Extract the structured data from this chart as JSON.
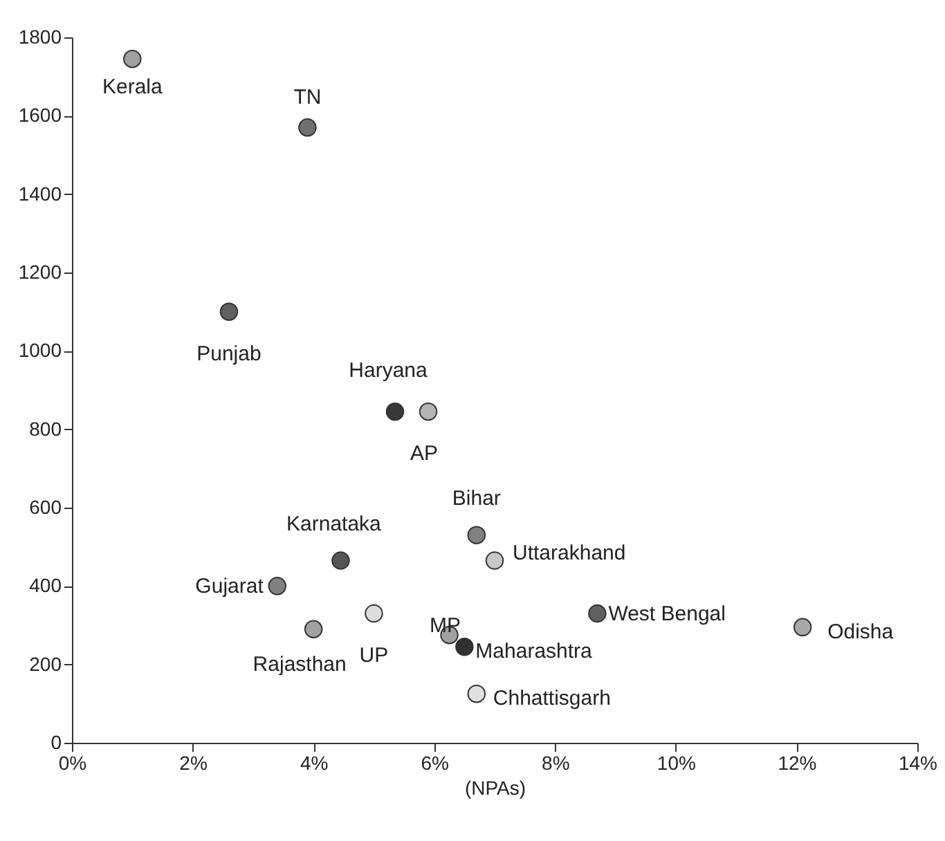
{
  "chart_data": {
    "type": "scatter",
    "xlabel": "(NPAs)",
    "x": [
      1.0,
      3.9,
      2.6,
      5.35,
      5.9,
      6.7,
      7.0,
      4.45,
      3.4,
      4.0,
      5.0,
      6.25,
      6.5,
      6.7,
      8.7,
      12.1
    ],
    "values": [
      1745,
      1570,
      1100,
      845,
      845,
      530,
      465,
      465,
      400,
      290,
      330,
      275,
      245,
      125,
      330,
      295
    ],
    "colors": [
      "#a0a0a0",
      "#707070",
      "#606060",
      "#383838",
      "#b4b4b4",
      "#808080",
      "#c8c8c8",
      "#555555",
      "#808080",
      "#a0a0a0",
      "#dcdcdc",
      "#a0a0a0",
      "#303030",
      "#e0e0e0",
      "#606060",
      "#a8a8a8"
    ],
    "annotations": [
      {
        "text": "Kerala",
        "x": 1.0,
        "y": 1745
      },
      {
        "text": "TN",
        "x": 3.9,
        "y": 1570
      },
      {
        "text": "Punjab",
        "x": 2.6,
        "y": 1100
      },
      {
        "text": "Haryana",
        "x": 5.35,
        "y": 845
      },
      {
        "text": "AP",
        "x": 5.9,
        "y": 845
      },
      {
        "text": "Bihar",
        "x": 6.7,
        "y": 530
      },
      {
        "text": "Uttarakhand",
        "x": 7.0,
        "y": 465
      },
      {
        "text": "Karnataka",
        "x": 4.45,
        "y": 465
      },
      {
        "text": "Gujarat",
        "x": 3.4,
        "y": 400
      },
      {
        "text": "Rajasthan",
        "x": 4.0,
        "y": 290
      },
      {
        "text": "UP",
        "x": 5.0,
        "y": 330
      },
      {
        "text": "MP",
        "x": 6.25,
        "y": 275
      },
      {
        "text": "Maharashtra",
        "x": 6.5,
        "y": 245
      },
      {
        "text": "Chhattisgarh",
        "x": 6.7,
        "y": 125
      },
      {
        "text": "West Bengal",
        "x": 8.7,
        "y": 330
      },
      {
        "text": "Odisha",
        "x": 12.1,
        "y": 295
      }
    ],
    "xlim": [
      0,
      14
    ],
    "ylim": [
      0,
      1800
    ],
    "xticks": [
      {
        "value": 0,
        "label": "0%"
      },
      {
        "value": 2,
        "label": "2%"
      },
      {
        "value": 4,
        "label": "4%"
      },
      {
        "value": 6,
        "label": "6%"
      },
      {
        "value": 8,
        "label": "8%"
      },
      {
        "value": 10,
        "label": "10%"
      },
      {
        "value": 12,
        "label": "12%"
      },
      {
        "value": 14,
        "label": "14%"
      }
    ],
    "yticks": [
      0,
      200,
      400,
      600,
      800,
      1000,
      1200,
      1400,
      1600,
      1800
    ],
    "grid": false
  }
}
